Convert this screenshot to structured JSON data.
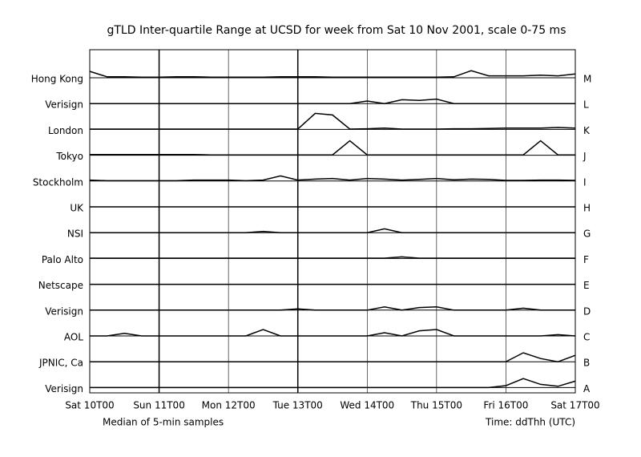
{
  "chart_data": {
    "type": "line",
    "title": "gTLD Inter-quartile Range at UCSD for week from Sat 10 Nov 2001, scale 0-75 ms",
    "subtitle": "Median of 5-min samples",
    "xlabel": "Time: ddThh (UTC)",
    "x": [
      0,
      6,
      12,
      18,
      24,
      30,
      36,
      42,
      48,
      54,
      60,
      66,
      72,
      78,
      84,
      90,
      96,
      102,
      108,
      114,
      120,
      126,
      132,
      138,
      144,
      150,
      156,
      162,
      168
    ],
    "xlim": [
      0,
      168
    ],
    "xticks": [
      {
        "value": 0,
        "label": "Sat 10T00"
      },
      {
        "value": 24,
        "label": "Sun 11T00"
      },
      {
        "value": 48,
        "label": "Mon 12T00"
      },
      {
        "value": 72,
        "label": "Tue 13T00"
      },
      {
        "value": 96,
        "label": "Wed 14T00"
      },
      {
        "value": 120,
        "label": "Thu 15T00"
      },
      {
        "value": 144,
        "label": "Fri 16T00"
      },
      {
        "value": 168,
        "label": "Sat 17T00"
      }
    ],
    "ylim": [
      0,
      75
    ],
    "yticks": [
      0
    ],
    "grid": true,
    "color": "#000000",
    "series": [
      {
        "name": "Hong Kong",
        "server": "M",
        "values": [
          20,
          3,
          3,
          2,
          2,
          3,
          3,
          2,
          2,
          2,
          2,
          3,
          3,
          3,
          2,
          2,
          2,
          2,
          2,
          2,
          2,
          3,
          22,
          6,
          6,
          6,
          8,
          6,
          12
        ]
      },
      {
        "name": "Verisign",
        "server": "L",
        "values": [
          0,
          0,
          0,
          0,
          0,
          0,
          0,
          0,
          0,
          0,
          0,
          0,
          0,
          0,
          0,
          0,
          8,
          0,
          12,
          10,
          14,
          0,
          0,
          0,
          0,
          0,
          0,
          0,
          0
        ]
      },
      {
        "name": "London",
        "server": "K",
        "values": [
          1,
          1,
          1,
          1,
          1,
          1,
          1,
          1,
          1,
          1,
          1,
          1,
          1,
          50,
          45,
          1,
          2,
          4,
          1,
          1,
          1,
          2,
          2,
          3,
          4,
          4,
          4,
          6,
          4
        ]
      },
      {
        "name": "Tokyo",
        "server": "J",
        "values": [
          2,
          2,
          2,
          2,
          2,
          2,
          2,
          1,
          1,
          1,
          1,
          1,
          1,
          1,
          1,
          45,
          1,
          1,
          1,
          1,
          1,
          1,
          1,
          1,
          1,
          1,
          45,
          1,
          1
        ]
      },
      {
        "name": "Stockholm",
        "server": "I",
        "values": [
          3,
          1,
          1,
          1,
          1,
          1,
          3,
          3,
          3,
          1,
          3,
          16,
          3,
          6,
          8,
          3,
          8,
          6,
          3,
          5,
          8,
          4,
          6,
          5,
          2,
          2,
          3,
          3,
          2
        ]
      },
      {
        "name": "UK",
        "server": "H",
        "values": [
          0,
          0,
          0,
          0,
          0,
          0,
          0,
          0,
          0,
          0,
          0,
          0,
          0,
          0,
          0,
          0,
          0,
          0,
          0,
          0,
          0,
          0,
          0,
          0,
          0,
          0,
          0,
          0,
          0
        ]
      },
      {
        "name": "NSI",
        "server": "G",
        "values": [
          0,
          0,
          0,
          0,
          0,
          0,
          0,
          0,
          0,
          0,
          4,
          0,
          0,
          0,
          0,
          0,
          0,
          12,
          0,
          0,
          0,
          0,
          0,
          0,
          0,
          0,
          0,
          0,
          0
        ]
      },
      {
        "name": "Palo Alto",
        "server": "F",
        "values": [
          1,
          1,
          1,
          1,
          1,
          1,
          1,
          1,
          1,
          1,
          1,
          1,
          1,
          1,
          1,
          1,
          1,
          1,
          5,
          1,
          1,
          1,
          1,
          1,
          1,
          1,
          1,
          1,
          1
        ]
      },
      {
        "name": "Netscape",
        "server": "E",
        "values": [
          0,
          0,
          0,
          0,
          0,
          0,
          0,
          0,
          0,
          0,
          0,
          0,
          0,
          0,
          0,
          0,
          0,
          0,
          0,
          0,
          0,
          0,
          0,
          0,
          0,
          0,
          0,
          0,
          0
        ]
      },
      {
        "name": "Verisign",
        "server": "D",
        "values": [
          0,
          0,
          0,
          0,
          0,
          0,
          0,
          0,
          0,
          0,
          0,
          0,
          4,
          0,
          0,
          0,
          0,
          10,
          0,
          8,
          10,
          0,
          0,
          0,
          0,
          6,
          0,
          0,
          0
        ]
      },
      {
        "name": "AOL",
        "server": "C",
        "values": [
          0,
          0,
          8,
          0,
          0,
          0,
          0,
          0,
          0,
          0,
          20,
          0,
          0,
          0,
          0,
          0,
          0,
          10,
          0,
          16,
          20,
          0,
          0,
          0,
          0,
          0,
          0,
          4,
          0
        ]
      },
      {
        "name": "JPNIC, Ca",
        "server": "B",
        "values": [
          0,
          0,
          0,
          0,
          0,
          0,
          0,
          0,
          0,
          0,
          0,
          0,
          0,
          0,
          0,
          0,
          0,
          0,
          0,
          0,
          0,
          0,
          0,
          0,
          0,
          28,
          10,
          0,
          20
        ]
      },
      {
        "name": "Verisign",
        "server": "A",
        "values": [
          0,
          0,
          0,
          0,
          0,
          0,
          0,
          0,
          0,
          0,
          0,
          0,
          0,
          0,
          0,
          0,
          0,
          0,
          0,
          0,
          0,
          0,
          0,
          0,
          6,
          28,
          10,
          4,
          20
        ]
      }
    ]
  }
}
